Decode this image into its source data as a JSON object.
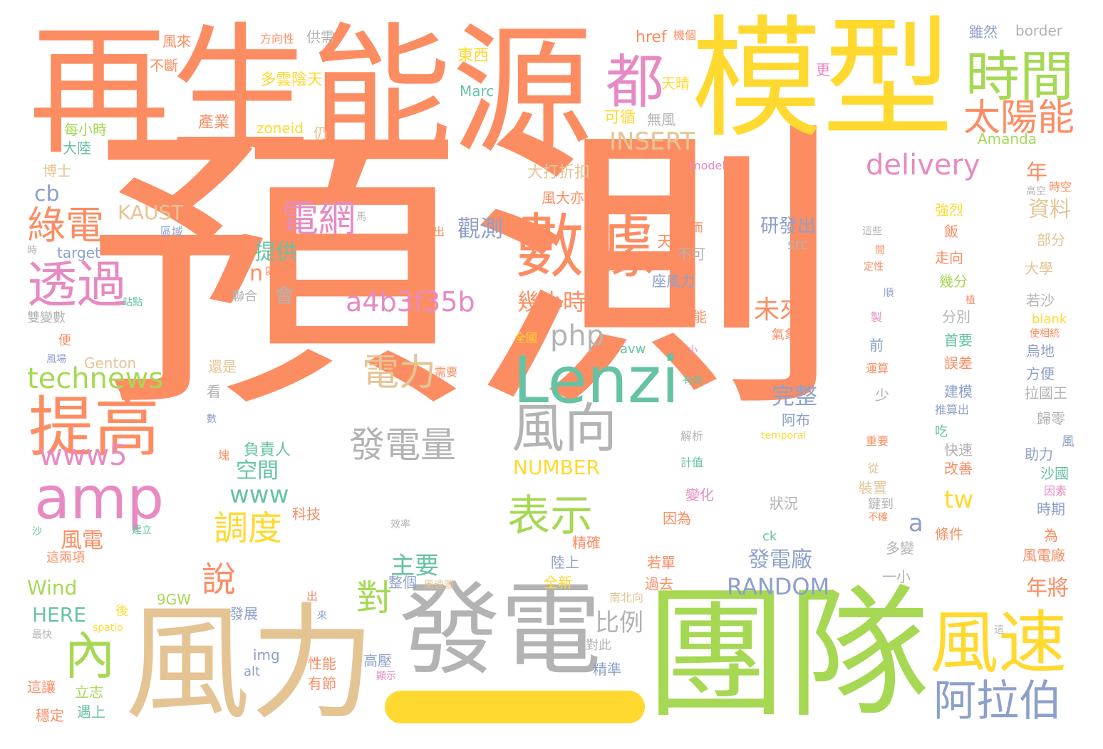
{
  "palette": {
    "orange": "#fc8d62",
    "yellow": "#ffd92f",
    "green": "#a6d854",
    "teal": "#66c2a5",
    "blue": "#8da0cb",
    "pink": "#e78ac3",
    "tan": "#e5c494",
    "gray": "#b3b3b3"
  },
  "words": [
    {
      "text": "預測",
      "color": "#fc8d62"
    },
    {
      "text": "再生能源",
      "color": "#fc8d62"
    },
    {
      "text": "模型",
      "color": "#ffd92f"
    },
    {
      "text": "團隊",
      "color": "#a6d854"
    },
    {
      "text": "發電",
      "color": "#b3b3b3"
    },
    {
      "text": "風力",
      "color": "#e5c494"
    },
    {
      "text": "數據",
      "color": "#fc8d62"
    },
    {
      "text": "Lenzi",
      "color": "#66c2a5"
    },
    {
      "text": "時間",
      "color": "#a6d854"
    },
    {
      "text": "風速",
      "color": "#ffd92f"
    },
    {
      "text": "都",
      "color": "#e78ac3"
    },
    {
      "text": "太陽能",
      "color": "#fc8d62"
    },
    {
      "text": "提高",
      "color": "#fc8d62"
    },
    {
      "text": "amp",
      "color": "#e78ac3"
    },
    {
      "text": "透過",
      "color": "#e78ac3"
    },
    {
      "text": "綠電",
      "color": "#fc8d62"
    },
    {
      "text": "電網",
      "color": "#e78ac3"
    },
    {
      "text": "風向",
      "color": "#b3b3b3"
    },
    {
      "text": "表示",
      "color": "#a6d854"
    },
    {
      "text": "阿拉伯",
      "color": "#8da0cb"
    },
    {
      "text": "內",
      "color": "#a6d854"
    },
    {
      "text": "電力",
      "color": "#e5c494"
    },
    {
      "text": "發電量",
      "color": "#b3b3b3"
    },
    {
      "text": "a4b3f35b",
      "color": "#e78ac3"
    },
    {
      "text": "delivery",
      "color": "#e78ac3"
    },
    {
      "text": "INSERT",
      "color": "#e5c494"
    },
    {
      "text": "technews",
      "color": "#a6d854"
    },
    {
      "text": "www5",
      "color": "#e78ac3"
    },
    {
      "text": "調度",
      "color": "#ffd92f"
    },
    {
      "text": "對",
      "color": "#a6d854"
    },
    {
      "text": "說",
      "color": "#fc8d62"
    },
    {
      "text": "www",
      "color": "#66c2a5"
    },
    {
      "text": "RANDOM",
      "color": "#8da0cb"
    },
    {
      "text": "NUMBER",
      "color": "#ffd92f"
    },
    {
      "text": "php",
      "color": "#b3b3b3"
    },
    {
      "text": "未來",
      "color": "#fc8d62"
    },
    {
      "text": "完整",
      "color": "#8da0cb"
    },
    {
      "text": "研發出",
      "color": "#8da0cb"
    },
    {
      "text": "KAUST",
      "color": "#e5c494"
    },
    {
      "text": "觀測",
      "color": "#8da0cb"
    },
    {
      "text": "幾小時",
      "color": "#fc8d62"
    },
    {
      "text": "提供",
      "color": "#66c2a5"
    },
    {
      "text": "空間",
      "color": "#66c2a5"
    },
    {
      "text": "負責人",
      "color": "#66c2a5"
    },
    {
      "text": "比例",
      "color": "#b3b3b3"
    },
    {
      "text": "發電廠",
      "color": "#8da0cb"
    },
    {
      "text": "主要",
      "color": "#66c2a5"
    },
    {
      "text": "Wind",
      "color": "#a6d854"
    },
    {
      "text": "HERE",
      "color": "#66c2a5"
    },
    {
      "text": "風電",
      "color": "#fc8d62"
    },
    {
      "text": "資料",
      "color": "#e5c494"
    },
    {
      "text": "年",
      "color": "#fc8d62"
    },
    {
      "text": "年將",
      "color": "#fc8d62"
    },
    {
      "text": "cb",
      "color": "#8da0cb"
    },
    {
      "text": "tw",
      "color": "#ffd92f"
    },
    {
      "text": "a",
      "color": "#8da0cb"
    },
    {
      "text": "n",
      "color": "#fc8d62"
    },
    {
      "text": "會",
      "color": "#b3b3b3"
    },
    {
      "text": "風來",
      "color": "#fc8d62"
    },
    {
      "text": "方向性",
      "color": "#fc8d62"
    },
    {
      "text": "供需",
      "color": "#b3b3b3"
    },
    {
      "text": "href",
      "color": "#fc8d62"
    },
    {
      "text": "機個",
      "color": "#fc8d62"
    },
    {
      "text": "雖然",
      "color": "#8da0cb"
    },
    {
      "text": "border",
      "color": "#b3b3b3"
    },
    {
      "text": "東西",
      "color": "#ffd92f"
    },
    {
      "text": "不斷",
      "color": "#fc8d62"
    },
    {
      "text": "多雲陰天",
      "color": "#ffd92f"
    },
    {
      "text": "天晴",
      "color": "#ffd92f"
    },
    {
      "text": "更",
      "color": "#e78ac3"
    },
    {
      "text": "Marc",
      "color": "#66c2a5"
    },
    {
      "text": "可循",
      "color": "#ffd92f"
    },
    {
      "text": "無風",
      "color": "#b3b3b3"
    },
    {
      "text": "產業",
      "color": "#fc8d62"
    },
    {
      "text": "zoneid",
      "color": "#ffd92f"
    },
    {
      "text": "仍",
      "color": "#e5c494"
    },
    {
      "text": "每小時",
      "color": "#a6d854"
    },
    {
      "text": "大陸",
      "color": "#66c2a5"
    },
    {
      "text": "Amanda",
      "color": "#a6d854"
    },
    {
      "text": "博士",
      "color": "#e5c494"
    },
    {
      "text": "大打折扣",
      "color": "#e5c494"
    },
    {
      "text": "model",
      "color": "#e78ac3"
    },
    {
      "text": "風大亦有",
      "color": "#fc8d62"
    },
    {
      "text": "時空",
      "color": "#fc8d62"
    },
    {
      "text": "強烈",
      "color": "#ffd92f"
    },
    {
      "text": "飯",
      "color": "#fc8d62"
    },
    {
      "text": "區域",
      "color": "#8da0cb"
    },
    {
      "text": "指出",
      "color": "#fc8d62"
    },
    {
      "text": "遙而",
      "color": "#fc8d62"
    },
    {
      "text": "src",
      "color": "#b3b3b3"
    },
    {
      "text": "target",
      "color": "#8da0cb"
    },
    {
      "text": "處理",
      "color": "#fc8d62"
    },
    {
      "text": "天",
      "color": "#fc8d62"
    },
    {
      "text": "不可",
      "color": "#b3b3b3"
    },
    {
      "text": "走向",
      "color": "#fc8d62"
    },
    {
      "text": "部分",
      "color": "#e5c494"
    },
    {
      "text": "大學",
      "color": "#e5c494"
    },
    {
      "text": "座風力",
      "color": "#8da0cb"
    },
    {
      "text": "幾分",
      "color": "#a6d854"
    },
    {
      "text": "若沙",
      "color": "#b3b3b3"
    },
    {
      "text": "聯合",
      "color": "#b3b3b3"
    },
    {
      "text": "站點",
      "color": "#66c2a5"
    },
    {
      "text": "才能",
      "color": "#fc8d62"
    },
    {
      "text": "分別",
      "color": "#b3b3b3"
    },
    {
      "text": "blank",
      "color": "#ffd92f"
    },
    {
      "text": "雙變數",
      "color": "#b3b3b3"
    },
    {
      "text": "全國",
      "color": "#ffd92f"
    },
    {
      "text": "氣象",
      "color": "#fc8d62"
    },
    {
      "text": "首要",
      "color": "#66c2a5"
    },
    {
      "text": "使相統",
      "color": "#fc8d62"
    },
    {
      "text": "便",
      "color": "#fc8d62"
    },
    {
      "text": "avw",
      "color": "#66c2a5"
    },
    {
      "text": "前",
      "color": "#8da0cb"
    },
    {
      "text": "烏地",
      "color": "#8da0cb"
    },
    {
      "text": "Genton",
      "color": "#e5c494"
    },
    {
      "text": "誤差",
      "color": "#fc8d62"
    },
    {
      "text": "方便",
      "color": "#8da0cb"
    },
    {
      "text": "風場",
      "color": "#8da0cb"
    },
    {
      "text": "還是",
      "color": "#e5c494"
    },
    {
      "text": "需要",
      "color": "#fc8d62"
    },
    {
      "text": "有效",
      "color": "#66c2a5"
    },
    {
      "text": "建模",
      "color": "#8da0cb"
    },
    {
      "text": "拉國王",
      "color": "#b3b3b3"
    },
    {
      "text": "看",
      "color": "#b3b3b3"
    },
    {
      "text": "阿布",
      "color": "#8da0cb"
    },
    {
      "text": "少",
      "color": "#b3b3b3"
    },
    {
      "text": "推算出",
      "color": "#8da0cb"
    },
    {
      "text": "歸零",
      "color": "#b3b3b3"
    },
    {
      "text": "數",
      "color": "#8da0cb"
    },
    {
      "text": "解析",
      "color": "#b3b3b3"
    },
    {
      "text": "temporal",
      "color": "#ffd92f"
    },
    {
      "text": "吃",
      "color": "#66c2a5"
    },
    {
      "text": "助力",
      "color": "#8da0cb"
    },
    {
      "text": "快速",
      "color": "#b3b3b3"
    },
    {
      "text": "計值",
      "color": "#66c2a5"
    },
    {
      "text": "重要",
      "color": "#fc8d62"
    },
    {
      "text": "沙國",
      "color": "#66c2a5"
    },
    {
      "text": "改善",
      "color": "#fc8d62"
    },
    {
      "text": "從",
      "color": "#e5c494"
    },
    {
      "text": "變化",
      "color": "#e78ac3"
    },
    {
      "text": "裝置",
      "color": "#e5c494"
    },
    {
      "text": "因素",
      "color": "#e78ac3"
    },
    {
      "text": "科技",
      "color": "#fc8d62"
    },
    {
      "text": "狀況",
      "color": "#b3b3b3"
    },
    {
      "text": "鍵到",
      "color": "#b3b3b3"
    },
    {
      "text": "時期",
      "color": "#8da0cb"
    },
    {
      "text": "效率",
      "color": "#b3b3b3"
    },
    {
      "text": "因為",
      "color": "#fc8d62"
    },
    {
      "text": "建立",
      "color": "#66c2a5"
    },
    {
      "text": "ck",
      "color": "#66c2a5"
    },
    {
      "text": "條件",
      "color": "#fc8d62"
    },
    {
      "text": "為",
      "color": "#fc8d62"
    },
    {
      "text": "精確",
      "color": "#fc8d62"
    },
    {
      "text": "多變",
      "color": "#b3b3b3"
    },
    {
      "text": "這兩項",
      "color": "#fc8d62"
    },
    {
      "text": "陸上",
      "color": "#8da0cb"
    },
    {
      "text": "若單",
      "color": "#fc8d62"
    },
    {
      "text": "風電廠",
      "color": "#fc8d62"
    },
    {
      "text": "一小",
      "color": "#b3b3b3"
    },
    {
      "text": "9GW",
      "color": "#a6d854"
    },
    {
      "text": "整個",
      "color": "#8da0cb"
    },
    {
      "text": "風速圖",
      "color": "#e5c494"
    },
    {
      "text": "全新",
      "color": "#ffd92f"
    },
    {
      "text": "過去",
      "color": "#fc8d62"
    },
    {
      "text": "出",
      "color": "#fc8d62"
    },
    {
      "text": "後",
      "color": "#ffd92f"
    },
    {
      "text": "南北向",
      "color": "#e5c494"
    },
    {
      "text": "發展",
      "color": "#8da0cb"
    },
    {
      "text": "最快",
      "color": "#b3b3b3"
    },
    {
      "text": "spatio",
      "color": "#ffd92f"
    },
    {
      "text": "來",
      "color": "#8da0cb"
    },
    {
      "text": "對此",
      "color": "#b3b3b3"
    },
    {
      "text": "img",
      "color": "#8da0cb"
    },
    {
      "text": "alt",
      "color": "#8da0cb"
    },
    {
      "text": "性能",
      "color": "#fc8d62"
    },
    {
      "text": "高壓",
      "color": "#8da0cb"
    },
    {
      "text": "精準",
      "color": "#8da0cb"
    },
    {
      "text": "這讓",
      "color": "#fc8d62"
    },
    {
      "text": "立志",
      "color": "#a6d854"
    },
    {
      "text": "有節",
      "color": "#fc8d62"
    },
    {
      "text": "顯示",
      "color": "#e78ac3"
    },
    {
      "text": "穩定",
      "color": "#fc8d62"
    },
    {
      "text": "遇上",
      "color": "#66c2a5"
    },
    {
      "text": "塊",
      "color": "#fc8d62"
    },
    {
      "text": "時",
      "color": "#b3b3b3"
    },
    {
      "text": "沙",
      "color": "#66c2a5"
    },
    {
      "text": "小",
      "color": "#e78ac3"
    },
    {
      "text": "馬",
      "color": "#b3b3b3"
    },
    {
      "text": "這些",
      "color": "#b3b3b3"
    },
    {
      "text": "高空",
      "color": "#b3b3b3"
    },
    {
      "text": "間",
      "color": "#fc8d62"
    },
    {
      "text": "定性",
      "color": "#fc8d62"
    },
    {
      "text": "順",
      "color": "#8da0cb"
    },
    {
      "text": "製",
      "color": "#e78ac3"
    },
    {
      "text": "運算",
      "color": "#fc8d62"
    },
    {
      "text": "不確",
      "color": "#fc8d62"
    },
    {
      "text": "這",
      "color": "#b3b3b3"
    },
    {
      "text": "風",
      "color": "#8da0cb"
    },
    {
      "text": "植",
      "color": "#fc8d62"
    }
  ]
}
